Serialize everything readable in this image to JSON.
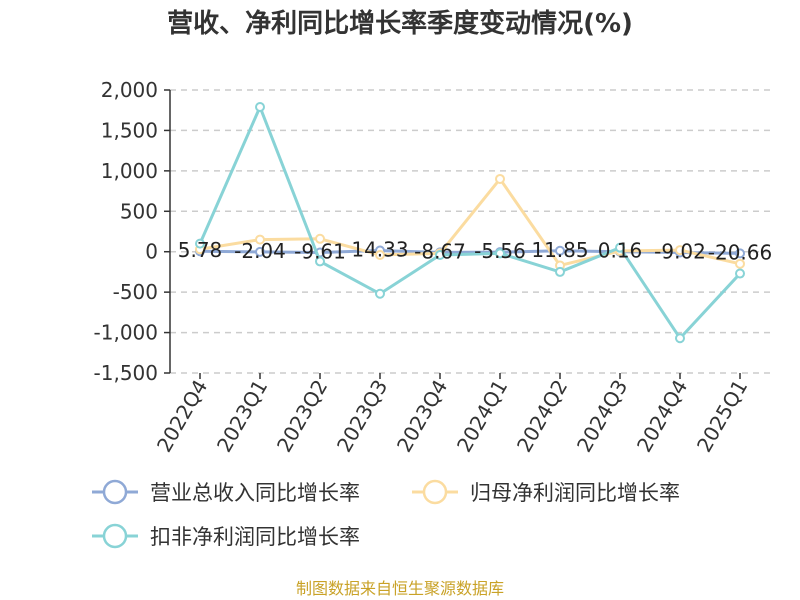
{
  "chart_data": {
    "type": "line",
    "title": "营收、净利同比增长率季度变动情况(%)",
    "categories": [
      "2022Q4",
      "2023Q1",
      "2023Q2",
      "2023Q3",
      "2023Q4",
      "2024Q1",
      "2024Q2",
      "2024Q3",
      "2024Q4",
      "2025Q1"
    ],
    "ylim": [
      -1500,
      2000
    ],
    "yticks": [
      2000,
      1500,
      1000,
      500,
      0,
      -500,
      -1000,
      -1500
    ],
    "ytick_labels": [
      "2,000",
      "1,500",
      "1,000",
      "500",
      "0",
      "-500",
      "-1,000",
      "-1,500"
    ],
    "grid": true,
    "legend_position": "bottom-left",
    "series": [
      {
        "name": "营业总收入同比增长率",
        "color": "#8fa9d6",
        "values": [
          5.78,
          -2.04,
          -9.61,
          14.33,
          -8.67,
          -5.56,
          11.85,
          0.16,
          -9.02,
          -20.66
        ],
        "labels": [
          "5.78",
          "-2.04",
          "-9.61",
          "14.33",
          "-8.67",
          "-5.56",
          "11.85",
          "0.16",
          "-9.02",
          "-20.66"
        ]
      },
      {
        "name": "归母净利润同比增长率",
        "color": "#fbdca0",
        "values": [
          30,
          150,
          160,
          -40,
          -20,
          900,
          -170,
          10,
          20,
          -150
        ]
      },
      {
        "name": "扣非净利润同比增长率",
        "color": "#88d3d6",
        "values": [
          100,
          1790,
          -120,
          -520,
          -40,
          -20,
          -250,
          50,
          -1070,
          -270
        ]
      }
    ],
    "source": "制图数据来自恒生聚源数据库"
  }
}
